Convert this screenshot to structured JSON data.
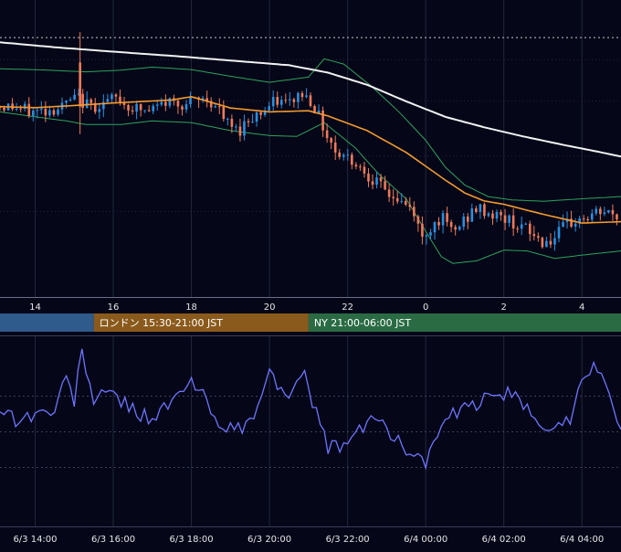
{
  "chart_data": {
    "type": "candlestick",
    "colors": {
      "background": "#050718",
      "up_candle": "#2a8fe0",
      "down_candle": "#f07a5a",
      "ma_fast": "#f39a2e",
      "ma_slow": "#f2f2f2",
      "bollinger": "#2fa25c",
      "oscillator": "#6f74ff",
      "grid": "#22263d",
      "axis_text": "#e6e6e6",
      "session_tokyo": "#2e5a8c",
      "session_london": "#8a5a1c",
      "session_ny": "#2a6b44"
    },
    "price_axis": {
      "x_ticks": [
        {
          "hour": 14,
          "label": "14"
        },
        {
          "hour": 16,
          "label": "16"
        },
        {
          "hour": 18,
          "label": "18"
        },
        {
          "hour": 20,
          "label": "20"
        },
        {
          "hour": 22,
          "label": "22"
        },
        {
          "hour": 24,
          "label": "0"
        },
        {
          "hour": 26,
          "label": "2"
        },
        {
          "hour": 28,
          "label": "4"
        }
      ]
    },
    "sessions": [
      {
        "name": "tokyo",
        "label": "",
        "start_hour": 12.0,
        "end_hour": 15.5
      },
      {
        "name": "london",
        "label": "ロンドン 15:30-21:00 JST",
        "start_hour": 15.5,
        "end_hour": 21.0
      },
      {
        "name": "ny",
        "label": "NY 21:00-06:00 JST",
        "start_hour": 21.0,
        "end_hour": 30.0
      }
    ],
    "oscillator_axis": {
      "x_ticks": [
        {
          "hour": 14,
          "label": "6/3 14:00"
        },
        {
          "hour": 16,
          "label": "6/3 16:00"
        },
        {
          "hour": 18,
          "label": "6/3 18:00"
        },
        {
          "hour": 20,
          "label": "6/3 20:00"
        },
        {
          "hour": 22,
          "label": "6/3 22:00"
        },
        {
          "hour": 24,
          "label": "6/4 00:00"
        },
        {
          "hour": 26,
          "label": "6/4 02:00"
        },
        {
          "hour": 28,
          "label": "6/4 04:00"
        }
      ]
    },
    "view": {
      "start_hour": 13.1,
      "end_hour": 29.0,
      "price_min": 0,
      "price_max": 100,
      "osc_min": 0,
      "osc_max": 100
    },
    "price_reference_level": 93,
    "oscillator_levels": [
      70,
      50,
      30
    ],
    "anchors": {
      "close": [
        [
          13.1,
          68
        ],
        [
          13.5,
          68
        ],
        [
          14.0,
          66
        ],
        [
          14.5,
          67
        ],
        [
          14.8,
          68
        ],
        [
          15.0,
          70
        ],
        [
          15.2,
          71
        ],
        [
          15.5,
          68
        ],
        [
          15.8,
          69
        ],
        [
          16.2,
          71
        ],
        [
          16.5,
          68
        ],
        [
          17.0,
          66
        ],
        [
          17.5,
          70
        ],
        [
          18.0,
          69
        ],
        [
          18.5,
          71
        ],
        [
          18.8,
          67
        ],
        [
          19.0,
          62
        ],
        [
          19.3,
          59
        ],
        [
          19.6,
          64
        ],
        [
          20.0,
          67
        ],
        [
          20.3,
          70
        ],
        [
          20.6,
          69
        ],
        [
          20.9,
          73
        ],
        [
          21.2,
          70
        ],
        [
          21.5,
          60
        ],
        [
          21.8,
          52
        ],
        [
          22.2,
          49
        ],
        [
          22.6,
          44
        ],
        [
          23.0,
          38
        ],
        [
          23.4,
          34
        ],
        [
          23.8,
          30
        ],
        [
          24.0,
          20
        ],
        [
          24.2,
          24
        ],
        [
          24.5,
          28
        ],
        [
          24.8,
          22
        ],
        [
          25.1,
          27
        ],
        [
          25.4,
          31
        ],
        [
          25.8,
          29
        ],
        [
          26.2,
          27
        ],
        [
          26.5,
          25
        ],
        [
          26.8,
          22
        ],
        [
          27.1,
          19
        ],
        [
          27.4,
          20
        ],
        [
          27.7,
          25
        ],
        [
          28.0,
          27
        ],
        [
          28.3,
          28
        ],
        [
          28.6,
          30
        ],
        [
          29.0,
          28
        ]
      ],
      "ma_fast": [
        [
          13.1,
          68
        ],
        [
          14.0,
          67.6
        ],
        [
          15.0,
          68.4
        ],
        [
          16.0,
          69.3
        ],
        [
          16.8,
          69.9
        ],
        [
          17.5,
          70.4
        ],
        [
          18.0,
          71.6
        ],
        [
          19.0,
          67.5
        ],
        [
          20.0,
          66.1
        ],
        [
          21.0,
          66.5
        ],
        [
          21.5,
          64.6
        ],
        [
          22.5,
          59.3
        ],
        [
          23.5,
          51.4
        ],
        [
          24.5,
          41.4
        ],
        [
          25.0,
          36.7
        ],
        [
          25.5,
          33.8
        ],
        [
          26.0,
          32.6
        ],
        [
          27.0,
          29.0
        ],
        [
          28.0,
          25.8
        ],
        [
          29.0,
          26.3
        ]
      ],
      "ma_slow": [
        [
          13.1,
          91.3
        ],
        [
          14.5,
          89.5
        ],
        [
          16.0,
          87.9
        ],
        [
          17.5,
          86.4
        ],
        [
          19.0,
          84.7
        ],
        [
          20.5,
          83.0
        ],
        [
          21.5,
          80.3
        ],
        [
          22.5,
          75.9
        ],
        [
          23.5,
          69.9
        ],
        [
          24.5,
          64.3
        ],
        [
          25.5,
          60.5
        ],
        [
          26.5,
          57.2
        ],
        [
          27.5,
          54.2
        ],
        [
          28.5,
          51.4
        ],
        [
          29.0,
          49.9
        ]
      ],
      "bb_upper": [
        [
          13.1,
          81.7
        ],
        [
          14.0,
          81.4
        ],
        [
          14.8,
          80.9
        ],
        [
          15.3,
          80.6
        ],
        [
          16.2,
          81.2
        ],
        [
          17.0,
          82.3
        ],
        [
          18.0,
          81.4
        ],
        [
          19.0,
          79.0
        ],
        [
          20.0,
          76.8
        ],
        [
          21.0,
          78.7
        ],
        [
          21.4,
          85.3
        ],
        [
          21.9,
          83.4
        ],
        [
          22.6,
          75.5
        ],
        [
          23.3,
          66.3
        ],
        [
          24.0,
          55.8
        ],
        [
          24.5,
          46.1
        ],
        [
          25.0,
          39.6
        ],
        [
          25.6,
          35.4
        ],
        [
          26.2,
          34.2
        ],
        [
          27.0,
          33.7
        ],
        [
          28.0,
          34.6
        ],
        [
          29.0,
          35.4
        ]
      ],
      "bb_lower": [
        [
          13.1,
          66.1
        ],
        [
          14.0,
          64.3
        ],
        [
          14.8,
          62.8
        ],
        [
          15.3,
          61.5
        ],
        [
          16.2,
          61.5
        ],
        [
          17.0,
          62.8
        ],
        [
          18.0,
          62.2
        ],
        [
          19.0,
          59.3
        ],
        [
          20.0,
          57.5
        ],
        [
          20.7,
          57.2
        ],
        [
          21.4,
          62.2
        ],
        [
          22.2,
          53.0
        ],
        [
          22.8,
          43.5
        ],
        [
          23.5,
          34.6
        ],
        [
          24.0,
          22.8
        ],
        [
          24.4,
          13.6
        ],
        [
          24.7,
          11.2
        ],
        [
          25.3,
          12.1
        ],
        [
          26.0,
          16.0
        ],
        [
          26.6,
          15.7
        ],
        [
          27.3,
          13.0
        ],
        [
          28.0,
          14.2
        ],
        [
          29.0,
          15.7
        ]
      ],
      "oscillator": [
        [
          13.1,
          64
        ],
        [
          13.5,
          57
        ],
        [
          14.0,
          60
        ],
        [
          14.5,
          62
        ],
        [
          14.8,
          80
        ],
        [
          15.0,
          68
        ],
        [
          15.2,
          95
        ],
        [
          15.5,
          68
        ],
        [
          16.0,
          72
        ],
        [
          16.5,
          62
        ],
        [
          17.0,
          58
        ],
        [
          17.5,
          66
        ],
        [
          18.0,
          78
        ],
        [
          18.3,
          70
        ],
        [
          18.6,
          58
        ],
        [
          19.0,
          52
        ],
        [
          19.3,
          50
        ],
        [
          19.6,
          60
        ],
        [
          20.0,
          82
        ],
        [
          20.3,
          75
        ],
        [
          20.6,
          72
        ],
        [
          20.9,
          80
        ],
        [
          21.2,
          62
        ],
        [
          21.5,
          40
        ],
        [
          22.0,
          44
        ],
        [
          22.4,
          52
        ],
        [
          22.8,
          60
        ],
        [
          23.2,
          45
        ],
        [
          23.6,
          40
        ],
        [
          24.0,
          33
        ],
        [
          24.3,
          48
        ],
        [
          24.6,
          58
        ],
        [
          25.0,
          62
        ],
        [
          25.5,
          68
        ],
        [
          26.0,
          72
        ],
        [
          26.3,
          68
        ],
        [
          26.7,
          60
        ],
        [
          27.0,
          55
        ],
        [
          27.4,
          52
        ],
        [
          27.7,
          58
        ],
        [
          28.0,
          82
        ],
        [
          28.3,
          88
        ],
        [
          28.6,
          75
        ],
        [
          29.0,
          55
        ]
      ]
    }
  }
}
